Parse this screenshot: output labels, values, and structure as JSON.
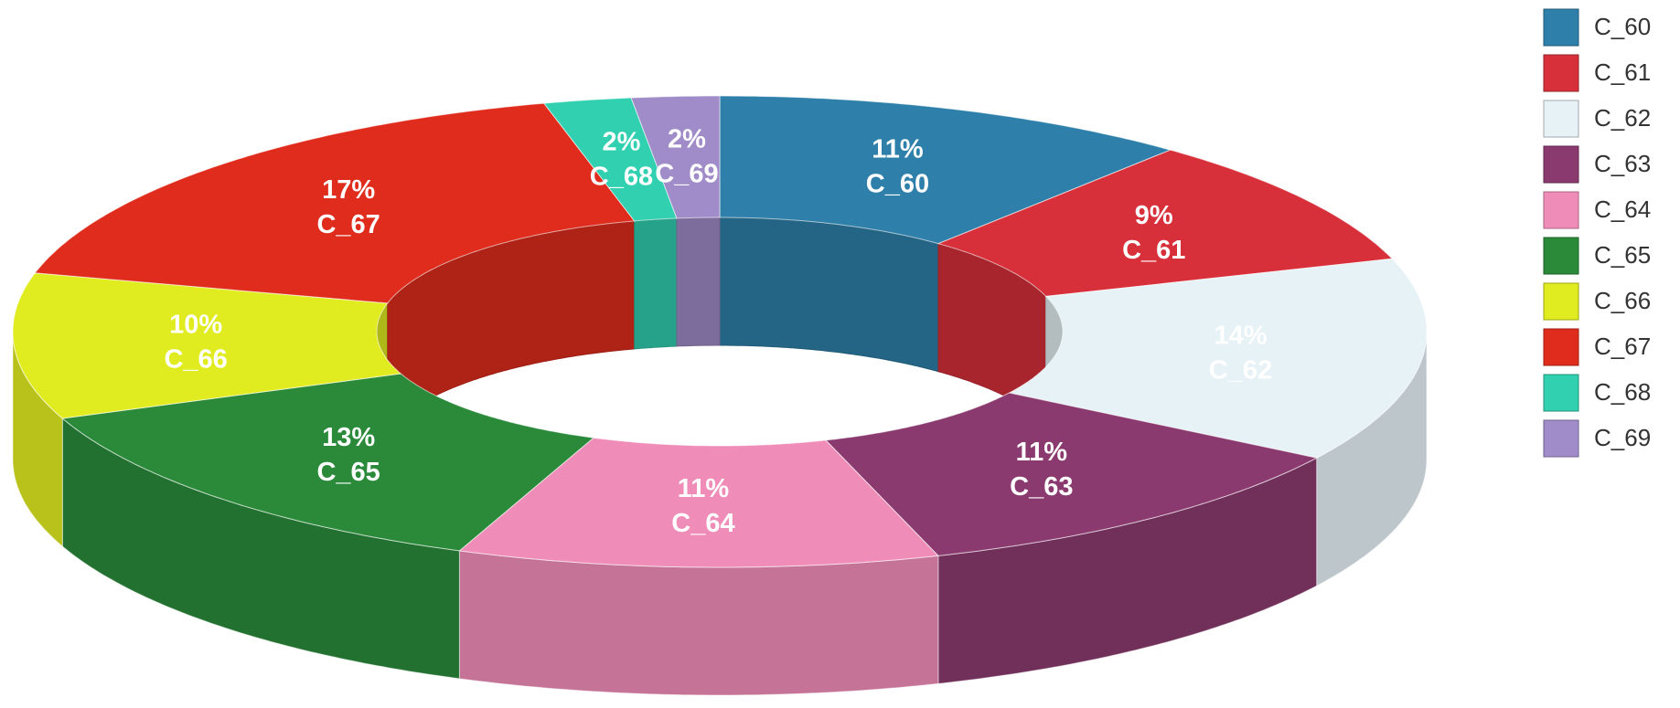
{
  "chart_data": {
    "type": "pie",
    "donut": true,
    "categories": [
      "C_60",
      "C_61",
      "C_62",
      "C_63",
      "C_64",
      "C_65",
      "C_66",
      "C_67",
      "C_68",
      "C_69"
    ],
    "values": [
      11,
      9,
      14,
      11,
      11,
      13,
      10,
      17,
      2,
      2
    ],
    "value_labels": [
      "11%",
      "9%",
      "14%",
      "11%",
      "11%",
      "13%",
      "10%",
      "17%",
      "2%",
      "2%"
    ],
    "colors": [
      "#2e80aa",
      "#d8303a",
      "#e6f2f6",
      "#8a3a6e",
      "#f08cb8",
      "#2a8a3a",
      "#e0ec20",
      "#e02c1c",
      "#30d0b0",
      "#a08cc8"
    ],
    "legend": "right"
  }
}
